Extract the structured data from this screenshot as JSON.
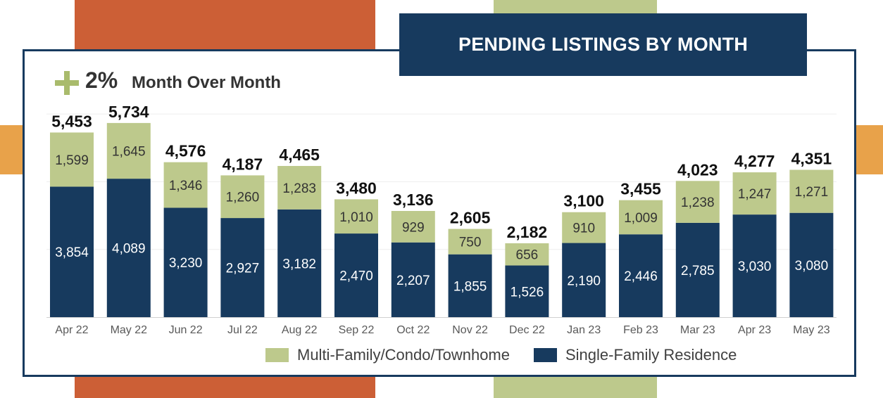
{
  "title": "PENDING LISTINGS BY MONTH",
  "mom": {
    "value": "2%",
    "label": "Month Over Month",
    "sign_icon": "plus-icon",
    "sign_color": "#a9bb6c"
  },
  "colors": {
    "multi_family": "#bdc98c",
    "single_family": "#173a5e",
    "accent_orange": "#cc5f36",
    "accent_gold": "#e8a24a",
    "accent_green": "#bdc98c"
  },
  "chart_data": {
    "type": "bar",
    "stacked": true,
    "categories": [
      "Apr 22",
      "May 22",
      "Jun 22",
      "Jul 22",
      "Aug 22",
      "Sep 22",
      "Oct 22",
      "Nov 22",
      "Dec 22",
      "Jan 23",
      "Feb 23",
      "Mar 23",
      "Apr 23",
      "May 23"
    ],
    "series": [
      {
        "name": "Single-Family Residence",
        "values": [
          3854,
          4089,
          3230,
          2927,
          3182,
          2470,
          2207,
          1855,
          1526,
          2190,
          2446,
          2785,
          3030,
          3080
        ]
      },
      {
        "name": "Multi-Family/Condo/Townhome",
        "values": [
          1599,
          1645,
          1346,
          1260,
          1283,
          1010,
          929,
          750,
          656,
          910,
          1009,
          1238,
          1247,
          1271
        ]
      }
    ],
    "totals": [
      5453,
      5734,
      4576,
      4187,
      4465,
      3480,
      3136,
      2605,
      2182,
      3100,
      3455,
      4023,
      4277,
      4351
    ],
    "ylim": [
      0,
      6000
    ],
    "grid": true,
    "legend_position": "bottom"
  },
  "legend": [
    {
      "label": "Multi-Family/Condo/Townhome",
      "color": "#bdc98c"
    },
    {
      "label": "Single-Family Residence",
      "color": "#173a5e"
    }
  ]
}
